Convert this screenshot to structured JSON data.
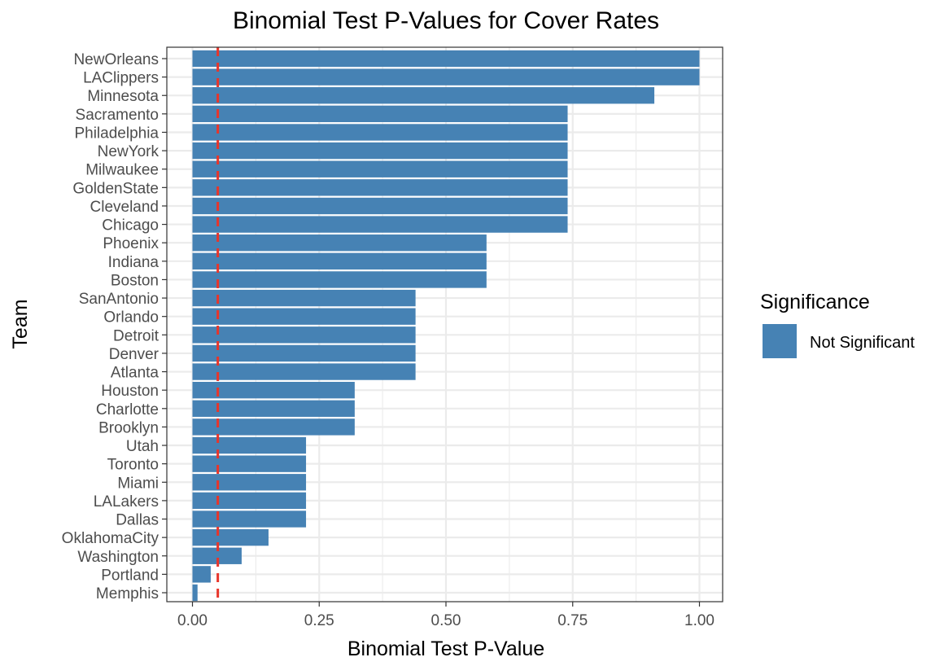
{
  "chart_data": {
    "type": "bar",
    "orientation": "horizontal",
    "title": "Binomial Test P-Values for Cover Rates",
    "xlabel": "Binomial Test P-Value",
    "ylabel": "Team",
    "xlim": [
      0,
      1
    ],
    "x_ticks": [
      {
        "value": 0,
        "label": "0.00"
      },
      {
        "value": 0.25,
        "label": "0.25"
      },
      {
        "value": 0.5,
        "label": "0.50"
      },
      {
        "value": 0.75,
        "label": "0.75"
      },
      {
        "value": 1,
        "label": "1.00"
      }
    ],
    "grid": true,
    "reference_line": {
      "value": 0.05,
      "style": "dashed",
      "color": "#e8352a"
    },
    "legend": {
      "title": "Significance",
      "position": "right",
      "entries": [
        {
          "label": "Not Significant",
          "color": "#4682b4"
        }
      ]
    },
    "bar_color": "#4682b4",
    "categories": [
      "NewOrleans",
      "LAClippers",
      "Minnesota",
      "Sacramento",
      "Philadelphia",
      "NewYork",
      "Milwaukee",
      "GoldenState",
      "Cleveland",
      "Chicago",
      "Phoenix",
      "Indiana",
      "Boston",
      "SanAntonio",
      "Orlando",
      "Detroit",
      "Denver",
      "Atlanta",
      "Houston",
      "Charlotte",
      "Brooklyn",
      "Utah",
      "Toronto",
      "Miami",
      "LALakers",
      "Dallas",
      "OklahomaCity",
      "Washington",
      "Portland",
      "Memphis"
    ],
    "values": [
      1.0,
      1.0,
      0.911,
      0.74,
      0.74,
      0.74,
      0.74,
      0.74,
      0.74,
      0.74,
      0.58,
      0.58,
      0.58,
      0.44,
      0.44,
      0.44,
      0.44,
      0.44,
      0.32,
      0.32,
      0.32,
      0.224,
      0.224,
      0.224,
      0.224,
      0.224,
      0.15,
      0.097,
      0.036,
      0.01
    ]
  }
}
